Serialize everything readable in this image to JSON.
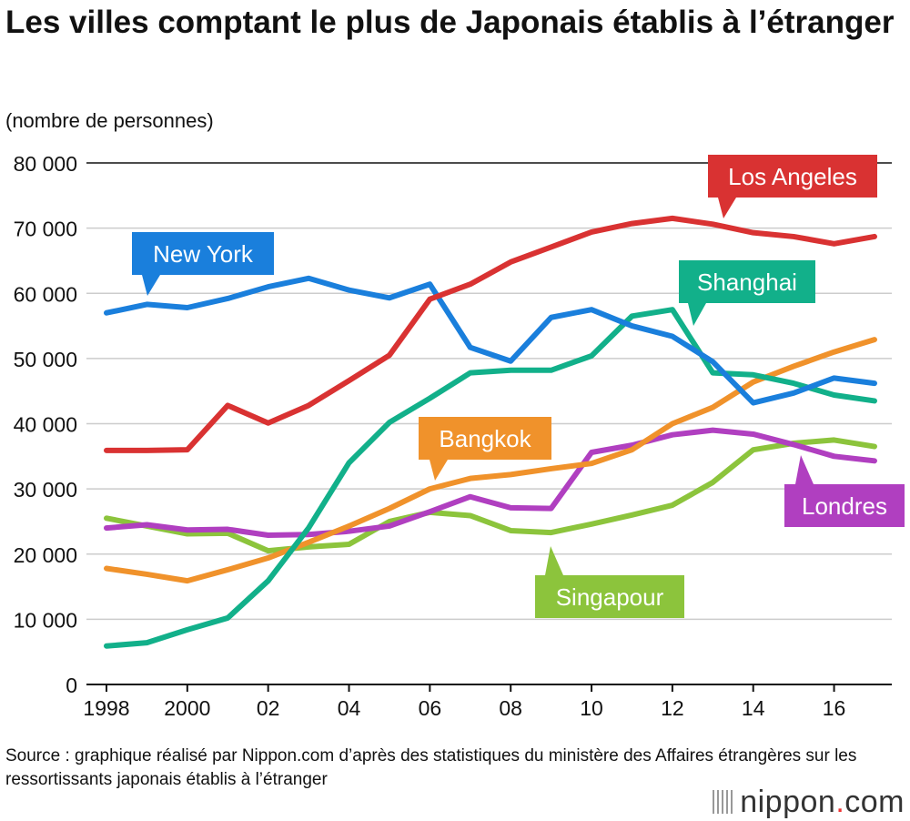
{
  "title": "Les villes comptant le plus de Japonais établis à l’étranger",
  "unit": "(nombre de personnes)",
  "source": "Source : graphique réalisé par Nippon.com d’après des statistiques du ministère des Affaires étrangères sur les ressortissants japonais établis à l’étranger",
  "logo": {
    "text": "nippon",
    "dot": ".",
    "tld": "com"
  },
  "chart_data": {
    "type": "line",
    "title": "Les villes comptant le plus de Japonais établis à l’étranger",
    "ylabel": "(nombre de personnes)",
    "ylim": [
      0,
      80000
    ],
    "grid": true,
    "yticks": [
      0,
      10000,
      20000,
      30000,
      40000,
      50000,
      60000,
      70000,
      80000
    ],
    "ytick_labels": [
      "0",
      "10 000",
      "20 000",
      "30 000",
      "40 000",
      "50 000",
      "60 000",
      "70 000",
      "80 000"
    ],
    "xtick_years": [
      1998,
      2000,
      2002,
      2004,
      2006,
      2008,
      2010,
      2012,
      2014,
      2016
    ],
    "xtick_labels": [
      "1998",
      "2000",
      "02",
      "04",
      "06",
      "08",
      "10",
      "12",
      "14",
      "16"
    ],
    "x": [
      1998,
      1999,
      2000,
      2001,
      2002,
      2003,
      2004,
      2005,
      2006,
      2007,
      2008,
      2009,
      2010,
      2011,
      2012,
      2013,
      2014,
      2015,
      2016,
      2017
    ],
    "series": [
      {
        "name": "Los Angeles",
        "color": "#d93232",
        "values": [
          35900,
          35900,
          36000,
          42800,
          40100,
          42800,
          46600,
          50500,
          59100,
          61400,
          64800,
          67100,
          69400,
          70700,
          71500,
          70600,
          69300,
          68700,
          67600,
          68700
        ]
      },
      {
        "name": "New York",
        "color": "#1a7fdc",
        "values": [
          57000,
          58300,
          57800,
          59200,
          61000,
          62300,
          60500,
          59300,
          61400,
          51700,
          49600,
          56300,
          57500,
          55000,
          53400,
          49500,
          43200,
          44700,
          47000,
          46200
        ]
      },
      {
        "name": "Shanghai",
        "color": "#12b08a",
        "values": [
          5900,
          6400,
          8400,
          10200,
          15900,
          24000,
          34000,
          40200,
          43900,
          47800,
          48200,
          48200,
          50400,
          56500,
          57500,
          47800,
          47500,
          46200,
          44400,
          43500
        ]
      },
      {
        "name": "Bangkok",
        "color": "#f0922b",
        "values": [
          17800,
          16900,
          15900,
          17600,
          19400,
          21800,
          24300,
          27000,
          30000,
          31600,
          32200,
          33100,
          33900,
          36000,
          40000,
          42500,
          46400,
          48800,
          51000,
          52900
        ]
      },
      {
        "name": "Londres",
        "color": "#b03fc0",
        "values": [
          24000,
          24500,
          23700,
          23800,
          22900,
          23000,
          23500,
          24300,
          26500,
          28800,
          27100,
          27000,
          35600,
          36700,
          38300,
          39000,
          38400,
          36800,
          35000,
          34300
        ]
      },
      {
        "name": "Singapour",
        "color": "#8cc43c",
        "values": [
          25500,
          24300,
          23100,
          23200,
          20500,
          21100,
          21500,
          25000,
          26400,
          25900,
          23600,
          23300,
          24600,
          26000,
          27500,
          31000,
          36000,
          37000,
          37500,
          36500
        ]
      }
    ]
  }
}
